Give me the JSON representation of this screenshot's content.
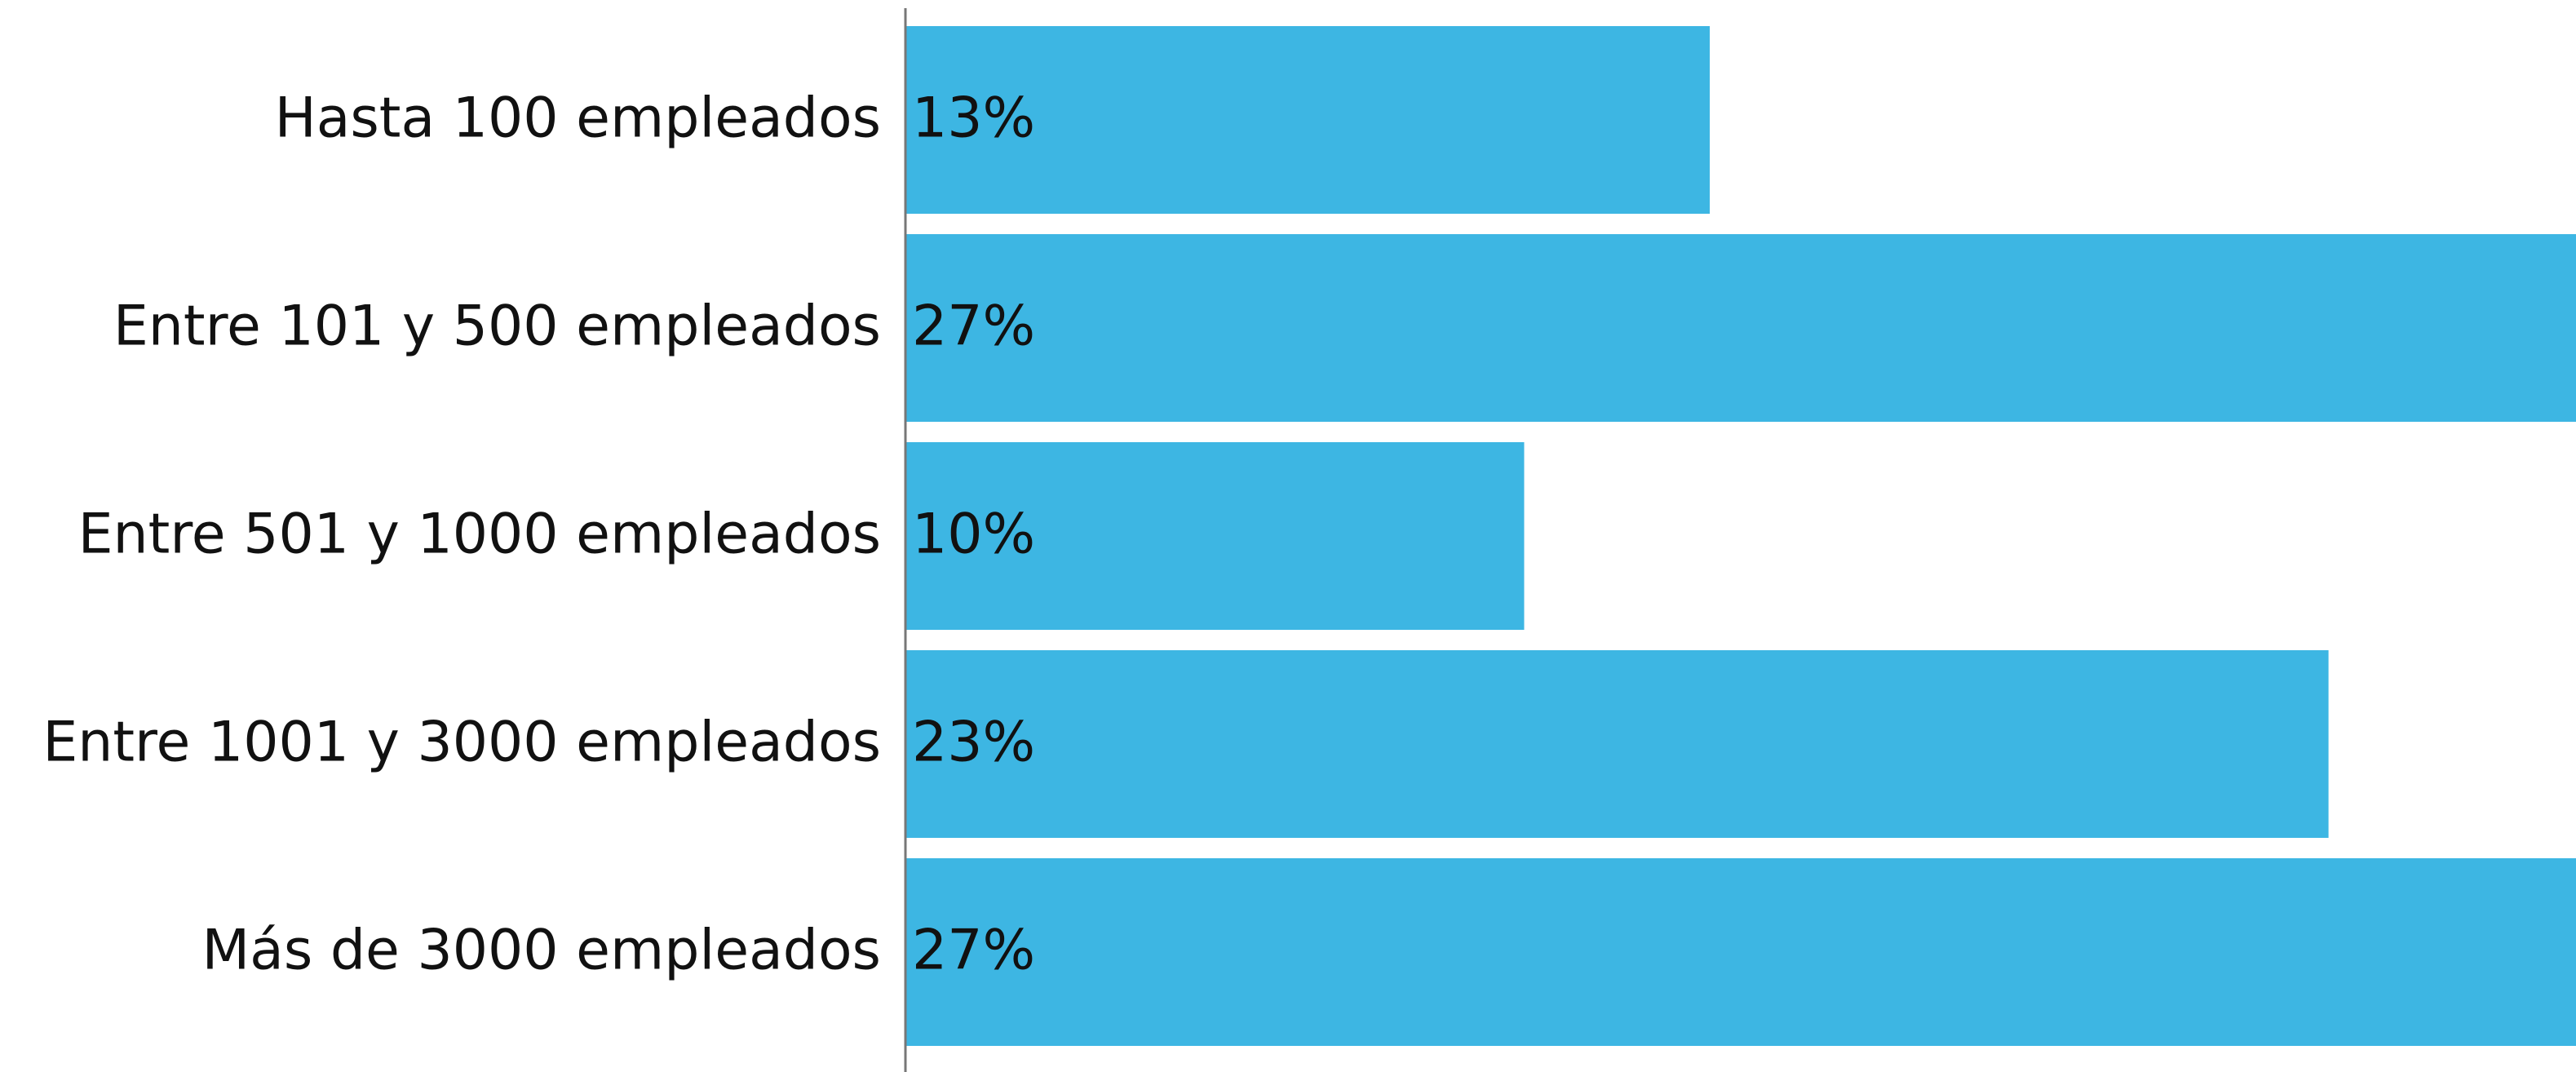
{
  "chart_data": {
    "type": "hbar",
    "categories": [
      "Hasta 100 empleados",
      "Entre 101 y 500 empleados",
      "Entre 501 y 1000 empleados",
      "Entre 1001 y 3000 empleados",
      "Más de 3000 empleados"
    ],
    "values": [
      13,
      27,
      10,
      23,
      27
    ],
    "value_labels": [
      "13%",
      "27%",
      "10%",
      "23%",
      "27%"
    ],
    "color": "#3db6e3",
    "xlim": [
      0,
      27
    ]
  }
}
